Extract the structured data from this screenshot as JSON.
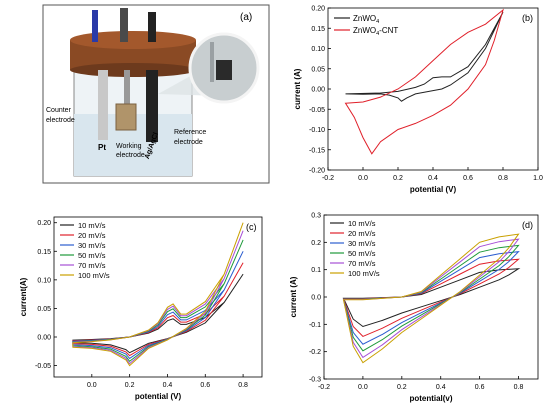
{
  "panel_a": {
    "tag": "(a)",
    "labels": {
      "counter": "Counter",
      "counter2": "electrode",
      "pt": "Pt",
      "working": "Working",
      "working2": "electrode",
      "agagcl": "Ag/AgCl",
      "reference": "Reference",
      "reference2": "electrode"
    }
  },
  "chart_data": [
    {
      "panel": "b",
      "type": "line",
      "tag": "(b)",
      "xlabel": "potential (V)",
      "ylabel": "current (A)",
      "xlim": [
        -0.2,
        1.0
      ],
      "ylim": [
        -0.2,
        0.2
      ],
      "xticks": [
        "-0.2",
        "0.0",
        "0.2",
        "0.4",
        "0.6",
        "0.8",
        "1.0"
      ],
      "yticks": [
        "-0.20",
        "-0.15",
        "-0.10",
        "-0.05",
        "0.00",
        "0.05",
        "0.10",
        "0.15",
        "0.20"
      ],
      "legend_position": "top-left",
      "colors": {
        "ZnWO4": "#222222",
        "ZnWO4-CNT": "#e0202a"
      },
      "series": [
        {
          "name": "ZnWO4",
          "legend": {
            "base": "ZnWO",
            "sub": "4",
            "suffix": ""
          },
          "x": [
            -0.1,
            0.1,
            0.2,
            0.3,
            0.35,
            0.4,
            0.45,
            0.5,
            0.6,
            0.7,
            0.8,
            0.7,
            0.6,
            0.5,
            0.45,
            0.4,
            0.3,
            0.25,
            0.22,
            0.2,
            0.15,
            0.1,
            0.0,
            -0.1
          ],
          "y": [
            -0.012,
            -0.01,
            -0.006,
            0.004,
            0.012,
            0.028,
            0.03,
            0.03,
            0.055,
            0.11,
            0.19,
            0.1,
            0.04,
            0.01,
            0.0,
            -0.004,
            -0.012,
            -0.022,
            -0.03,
            -0.022,
            -0.015,
            -0.012,
            -0.013,
            -0.012
          ]
        },
        {
          "name": "ZnWO4-CNT",
          "legend": {
            "base": "ZnWO",
            "sub": "4",
            "suffix": "-CNT"
          },
          "x": [
            -0.1,
            0.0,
            0.1,
            0.2,
            0.3,
            0.4,
            0.5,
            0.6,
            0.7,
            0.8,
            0.75,
            0.7,
            0.6,
            0.5,
            0.4,
            0.3,
            0.2,
            0.1,
            0.05,
            0.0,
            -0.05,
            -0.1
          ],
          "y": [
            -0.035,
            -0.032,
            -0.02,
            0.0,
            0.03,
            0.07,
            0.11,
            0.14,
            0.16,
            0.195,
            0.12,
            0.06,
            0.0,
            -0.04,
            -0.065,
            -0.085,
            -0.1,
            -0.13,
            -0.16,
            -0.12,
            -0.07,
            -0.035
          ]
        }
      ]
    },
    {
      "panel": "c",
      "type": "line",
      "tag": "(c)",
      "xlabel": "potential (V)",
      "ylabel": "current(A)",
      "xlim": [
        -0.2,
        0.9
      ],
      "ylim": [
        -0.07,
        0.21
      ],
      "xticks": [
        "0.0",
        "0.2",
        "0.4",
        "0.6",
        "0.8"
      ],
      "yticks": [
        "-0.05",
        "0.00",
        "0.05",
        "0.10",
        "0.15",
        "0.20"
      ],
      "legend_position": "top-left",
      "series": [
        {
          "name": "10  mV/s",
          "color": "#222222",
          "scale": 0.55
        },
        {
          "name": "20  mV/s",
          "color": "#e0202a",
          "scale": 0.65
        },
        {
          "name": "30  mV/s",
          "color": "#2a5ccf",
          "scale": 0.75
        },
        {
          "name": "50  mV/s",
          "color": "#1e9a3a",
          "scale": 0.85
        },
        {
          "name": "70  mV/s",
          "color": "#a64fd6",
          "scale": 0.93
        },
        {
          "name": "100 mV/s",
          "color": "#c9a000",
          "scale": 1.0
        }
      ],
      "base_curve": {
        "x": [
          -0.1,
          0.0,
          0.1,
          0.2,
          0.3,
          0.35,
          0.4,
          0.43,
          0.47,
          0.5,
          0.6,
          0.7,
          0.8,
          0.7,
          0.6,
          0.5,
          0.45,
          0.4,
          0.3,
          0.25,
          0.2,
          0.18,
          0.1,
          0.0,
          -0.1
        ],
        "y": [
          -0.01,
          -0.008,
          -0.005,
          0.0,
          0.012,
          0.025,
          0.052,
          0.058,
          0.04,
          0.04,
          0.062,
          0.11,
          0.2,
          0.11,
          0.045,
          0.015,
          0.005,
          -0.005,
          -0.02,
          -0.035,
          -0.05,
          -0.04,
          -0.025,
          -0.02,
          -0.018
        ]
      }
    },
    {
      "panel": "d",
      "type": "line",
      "tag": "(d)",
      "xlabel": "potential(v)",
      "ylabel": "current (A)",
      "xlim": [
        -0.2,
        0.9
      ],
      "ylim": [
        -0.3,
        0.3
      ],
      "xticks": [
        "-0.2",
        "0.0",
        "0.2",
        "0.4",
        "0.6",
        "0.8"
      ],
      "yticks": [
        "-0.3",
        "-0.2",
        "-0.1",
        "0.0",
        "0.1",
        "0.2",
        "0.3"
      ],
      "legend_position": "top-left",
      "series": [
        {
          "name": "10  mV/s",
          "color": "#222222",
          "scale": 0.45
        },
        {
          "name": "20  mV/s",
          "color": "#e0202a",
          "scale": 0.6
        },
        {
          "name": "30  mV/s",
          "color": "#2a5ccf",
          "scale": 0.72
        },
        {
          "name": "50  mV/s",
          "color": "#1e9a3a",
          "scale": 0.82
        },
        {
          "name": "70  mV/s",
          "color": "#a64fd6",
          "scale": 0.92
        },
        {
          "name": "100 mV/s",
          "color": "#c9a000",
          "scale": 1.0
        }
      ],
      "base_curve": {
        "x": [
          -0.1,
          0.0,
          0.1,
          0.2,
          0.3,
          0.4,
          0.5,
          0.6,
          0.7,
          0.8,
          0.75,
          0.7,
          0.6,
          0.5,
          0.4,
          0.3,
          0.2,
          0.1,
          0.0,
          -0.05,
          -0.1
        ],
        "y": [
          -0.01,
          -0.01,
          -0.005,
          0.0,
          0.02,
          0.08,
          0.14,
          0.2,
          0.22,
          0.23,
          0.18,
          0.14,
          0.08,
          0.02,
          -0.03,
          -0.08,
          -0.13,
          -0.19,
          -0.24,
          -0.18,
          -0.01
        ]
      }
    }
  ]
}
